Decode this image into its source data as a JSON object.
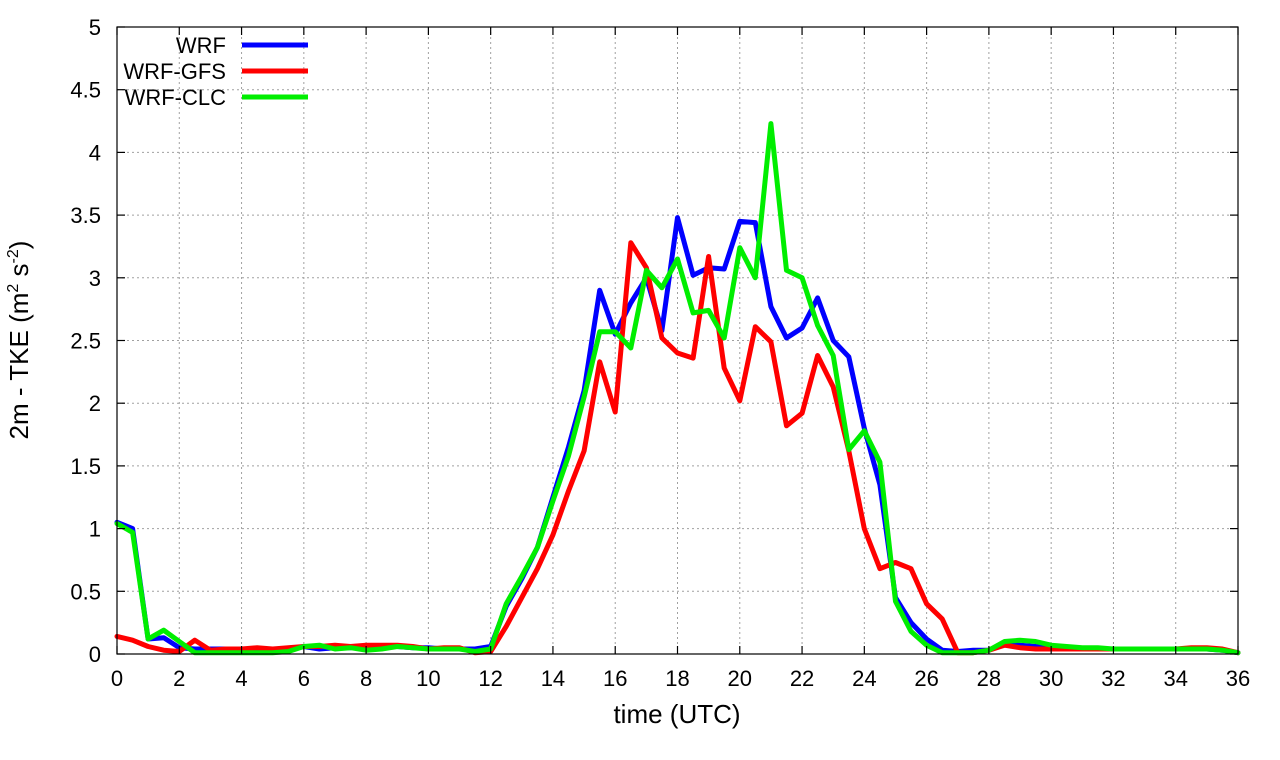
{
  "chart_data": {
    "type": "line",
    "title": "",
    "xlabel": "time (UTC)",
    "ylabel": "2m - TKE (m",
    "ylabel_unit_mid": " s",
    "ylabel_end": ")",
    "ylabel_sup1": "2",
    "ylabel_sup2": "-2",
    "xlim": [
      0,
      36
    ],
    "ylim": [
      0,
      5
    ],
    "xticks": [
      0,
      2,
      4,
      6,
      8,
      10,
      12,
      14,
      16,
      18,
      20,
      22,
      24,
      26,
      28,
      30,
      32,
      34,
      36
    ],
    "yticks": [
      0,
      0.5,
      1,
      1.5,
      2,
      2.5,
      3,
      3.5,
      4,
      4.5,
      5
    ],
    "ytick_labels": [
      "0",
      "0.5",
      "1",
      "1.5",
      "2",
      "2.5",
      "3",
      "3.5",
      "4",
      "4.5",
      "5"
    ],
    "grid": true,
    "legend_position": "top-left",
    "x": [
      0,
      0.5,
      1,
      1.5,
      2,
      2.5,
      3,
      3.5,
      4,
      4.5,
      5,
      5.5,
      6,
      6.5,
      7,
      7.5,
      8,
      8.5,
      9,
      9.5,
      10,
      10.5,
      11,
      11.5,
      12,
      12.5,
      13,
      13.5,
      14,
      14.5,
      15,
      15.5,
      16,
      16.5,
      17,
      17.5,
      18,
      18.5,
      19,
      19.5,
      20,
      20.5,
      21,
      21.5,
      22,
      22.5,
      23,
      23.5,
      24,
      24.5,
      25,
      25.5,
      26,
      26.5,
      27,
      27.5,
      28,
      28.5,
      29,
      29.5,
      30,
      30.5,
      31,
      31.5,
      32,
      32.5,
      33,
      33.5,
      34,
      34.5,
      35,
      35.5,
      36
    ],
    "series": [
      {
        "name": "WRF",
        "color": "#0000ff",
        "values": [
          1.05,
          1.0,
          0.12,
          0.13,
          0.05,
          0.04,
          0.04,
          0.04,
          0.04,
          0.04,
          0.03,
          0.04,
          0.06,
          0.04,
          0.05,
          0.05,
          0.06,
          0.06,
          0.06,
          0.05,
          0.05,
          0.04,
          0.04,
          0.04,
          0.06,
          0.38,
          0.6,
          0.85,
          1.25,
          1.65,
          2.1,
          2.9,
          2.55,
          2.8,
          3.0,
          2.58,
          3.48,
          3.02,
          3.08,
          3.07,
          3.45,
          3.44,
          2.77,
          2.52,
          2.6,
          2.84,
          2.5,
          2.37,
          1.8,
          1.35,
          0.45,
          0.25,
          0.12,
          0.03,
          0.02,
          0.03,
          0.03,
          0.08,
          0.07,
          0.06,
          0.05,
          0.05,
          0.04,
          0.04,
          0.04,
          0.04,
          0.04,
          0.04,
          0.04,
          0.04,
          0.04,
          0.03,
          0.01
        ]
      },
      {
        "name": "WRF-GFS",
        "color": "#ff0000",
        "values": [
          0.14,
          0.11,
          0.06,
          0.03,
          0.02,
          0.11,
          0.03,
          0.04,
          0.04,
          0.05,
          0.04,
          0.05,
          0.06,
          0.06,
          0.07,
          0.06,
          0.07,
          0.07,
          0.07,
          0.06,
          0.04,
          0.05,
          0.05,
          0.01,
          0.02,
          0.22,
          0.45,
          0.68,
          0.95,
          1.3,
          1.62,
          2.33,
          1.93,
          3.28,
          3.08,
          2.52,
          2.4,
          2.36,
          3.17,
          2.28,
          2.02,
          2.61,
          2.49,
          1.82,
          1.92,
          2.38,
          2.13,
          1.62,
          1.0,
          0.68,
          0.73,
          0.68,
          0.4,
          0.28,
          0.01,
          0.01,
          0.03,
          0.07,
          0.05,
          0.04,
          0.04,
          0.04,
          0.04,
          0.04,
          0.04,
          0.04,
          0.04,
          0.04,
          0.04,
          0.05,
          0.05,
          0.04,
          0.01
        ]
      },
      {
        "name": "WRF-CLC",
        "color": "#00ee00",
        "values": [
          1.04,
          0.97,
          0.12,
          0.19,
          0.1,
          0.01,
          0.01,
          0.01,
          0.01,
          0.01,
          0.01,
          0.02,
          0.06,
          0.07,
          0.04,
          0.05,
          0.03,
          0.04,
          0.06,
          0.05,
          0.04,
          0.04,
          0.04,
          0.02,
          0.04,
          0.4,
          0.62,
          0.85,
          1.22,
          1.58,
          2.05,
          2.57,
          2.57,
          2.44,
          3.06,
          2.92,
          3.15,
          2.72,
          2.74,
          2.52,
          3.24,
          3.0,
          4.23,
          3.06,
          3.0,
          2.62,
          2.38,
          1.63,
          1.78,
          1.53,
          0.42,
          0.18,
          0.07,
          0.01,
          0.01,
          0.01,
          0.03,
          0.1,
          0.11,
          0.1,
          0.07,
          0.06,
          0.05,
          0.05,
          0.04,
          0.04,
          0.04,
          0.04,
          0.04,
          0.04,
          0.04,
          0.03,
          0.01
        ]
      }
    ]
  }
}
